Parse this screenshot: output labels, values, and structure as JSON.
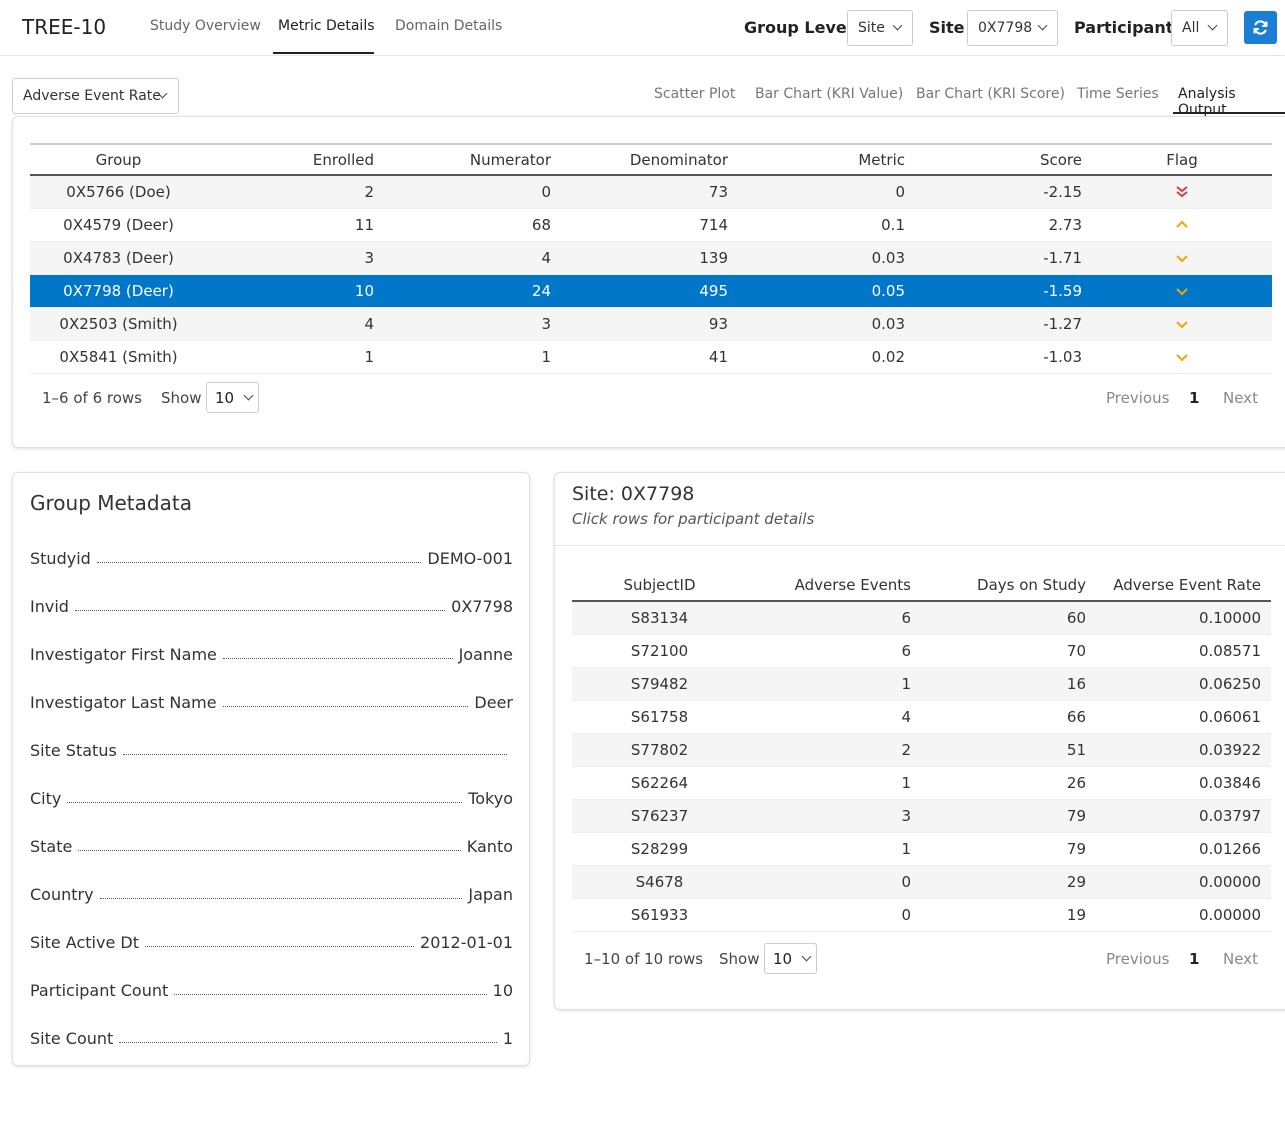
{
  "app": {
    "title": "TREE-10"
  },
  "nav": {
    "tabs": [
      "Study Overview",
      "Metric Details",
      "Domain Details"
    ],
    "active": "Metric Details"
  },
  "controls": {
    "group_level_label": "Group Level",
    "group_level_value": "Site",
    "site_label": "Site",
    "site_value": "0X7798",
    "participant_label": "Participant",
    "participant_value": "All",
    "refresh_icon": "refresh-icon"
  },
  "metric_select": {
    "value": "Adverse Event Rate"
  },
  "view_tabs": [
    "Scatter Plot",
    "Bar Chart (KRI Value)",
    "Bar Chart (KRI Score)",
    "Time Series",
    "Analysis Output"
  ],
  "active_view": "Analysis Output",
  "analysis_table": {
    "columns": [
      "Group",
      "Enrolled",
      "Numerator",
      "Denominator",
      "Metric",
      "Score",
      "Flag"
    ],
    "rows": [
      {
        "group": "0X5766 (Doe)",
        "enrolled": "2",
        "numerator": "0",
        "denominator": "73",
        "metric": "0",
        "score": "-2.15",
        "flag": "double-down"
      },
      {
        "group": "0X4579 (Deer)",
        "enrolled": "11",
        "numerator": "68",
        "denominator": "714",
        "metric": "0.1",
        "score": "2.73",
        "flag": "up"
      },
      {
        "group": "0X4783 (Deer)",
        "enrolled": "3",
        "numerator": "4",
        "denominator": "139",
        "metric": "0.03",
        "score": "-1.71",
        "flag": "down"
      },
      {
        "group": "0X7798 (Deer)",
        "enrolled": "10",
        "numerator": "24",
        "denominator": "495",
        "metric": "0.05",
        "score": "-1.59",
        "flag": "down"
      },
      {
        "group": "0X2503 (Smith)",
        "enrolled": "4",
        "numerator": "3",
        "denominator": "93",
        "metric": "0.03",
        "score": "-1.27",
        "flag": "down"
      },
      {
        "group": "0X5841 (Smith)",
        "enrolled": "1",
        "numerator": "1",
        "denominator": "41",
        "metric": "0.02",
        "score": "-1.03",
        "flag": "down"
      }
    ],
    "selected_index": 3,
    "pager": {
      "info": "1–6 of 6 rows",
      "show_label": "Show",
      "page_size": "10",
      "prev": "Previous",
      "page": "1",
      "next": "Next"
    }
  },
  "flag_colors": {
    "red": "#e03a3a",
    "amber": "#f0a800"
  },
  "group_metadata": {
    "title": "Group Metadata",
    "rows": [
      {
        "k": "Studyid",
        "v": "DEMO-001"
      },
      {
        "k": "Invid",
        "v": "0X7798"
      },
      {
        "k": "Investigator First Name",
        "v": "Joanne"
      },
      {
        "k": "Investigator Last Name",
        "v": "Deer"
      },
      {
        "k": "Site Status",
        "v": ""
      },
      {
        "k": "City",
        "v": "Tokyo"
      },
      {
        "k": "State",
        "v": "Kanto"
      },
      {
        "k": "Country",
        "v": "Japan"
      },
      {
        "k": "Site Active Dt",
        "v": "2012-01-01"
      },
      {
        "k": "Participant Count",
        "v": "10"
      },
      {
        "k": "Site Count",
        "v": "1"
      }
    ]
  },
  "site_panel": {
    "title": "Site: 0X7798",
    "subtitle": "Click rows for participant details",
    "columns": [
      "SubjectID",
      "Adverse Events",
      "Days on Study",
      "Adverse Event Rate"
    ],
    "rows": [
      [
        "S83134",
        "6",
        "60",
        "0.10000"
      ],
      [
        "S72100",
        "6",
        "70",
        "0.08571"
      ],
      [
        "S79482",
        "1",
        "16",
        "0.06250"
      ],
      [
        "S61758",
        "4",
        "66",
        "0.06061"
      ],
      [
        "S77802",
        "2",
        "51",
        "0.03922"
      ],
      [
        "S62264",
        "1",
        "26",
        "0.03846"
      ],
      [
        "S76237",
        "3",
        "79",
        "0.03797"
      ],
      [
        "S28299",
        "1",
        "79",
        "0.01266"
      ],
      [
        "S4678",
        "0",
        "29",
        "0.00000"
      ],
      [
        "S61933",
        "0",
        "19",
        "0.00000"
      ]
    ],
    "pager": {
      "info": "1–10 of 10 rows",
      "show_label": "Show",
      "page_size": "10",
      "prev": "Previous",
      "page": "1",
      "next": "Next"
    }
  }
}
